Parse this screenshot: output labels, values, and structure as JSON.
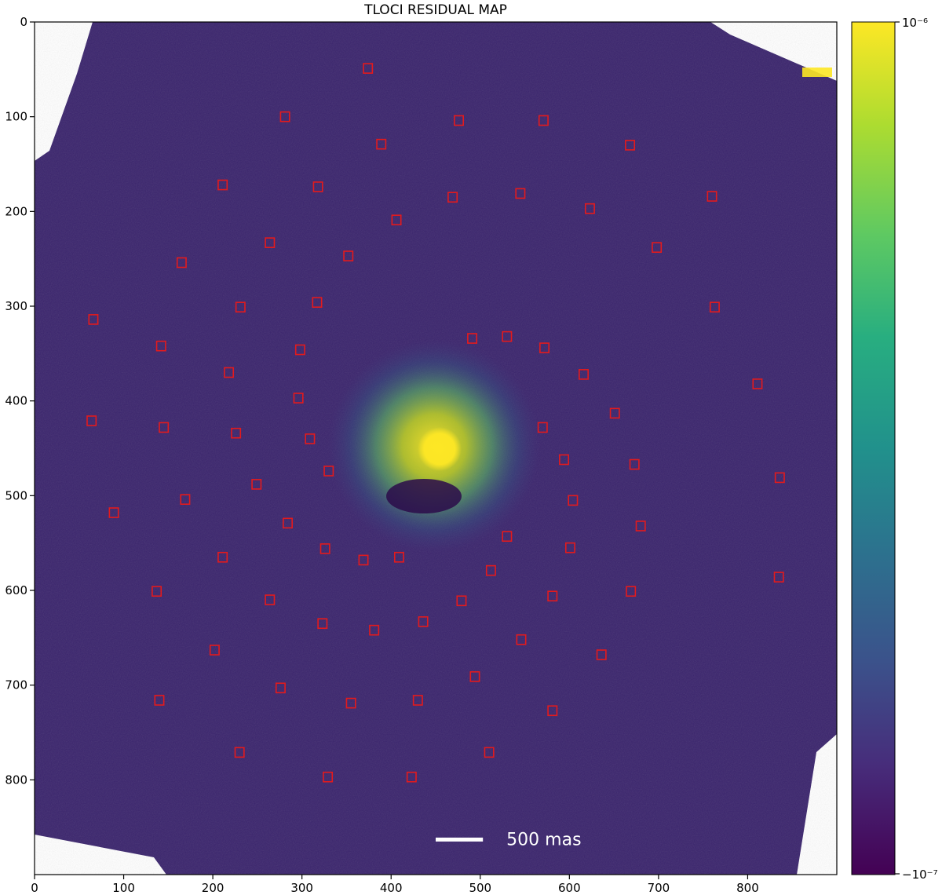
{
  "chart_data": {
    "type": "heatmap",
    "title": "TLOCI RESIDUAL MAP",
    "xlim": [
      0,
      900
    ],
    "ylim": [
      900,
      0
    ],
    "xticks": [
      0,
      100,
      200,
      300,
      400,
      500,
      600,
      700,
      800
    ],
    "yticks": [
      0,
      100,
      200,
      300,
      400,
      500,
      600,
      700,
      800
    ],
    "colorbar": {
      "colormap": "viridis",
      "max_label": "10⁻⁶",
      "min_label": "−10⁻⁷",
      "max_value": 1e-06,
      "min_value": -1e-07
    },
    "center": [
      460,
      455
    ],
    "scalebar": {
      "label": "500 mas",
      "x_start": 450,
      "x_end": 503,
      "y": 863,
      "color": "#ffffff"
    },
    "marker_style": {
      "shape": "square",
      "edge_color": "#e41a1c",
      "size_units": 10
    },
    "markers": [
      [
        374,
        49
      ],
      [
        281,
        100
      ],
      [
        476,
        104
      ],
      [
        571,
        104
      ],
      [
        668,
        130
      ],
      [
        389,
        129
      ],
      [
        211,
        172
      ],
      [
        318,
        174
      ],
      [
        469,
        185
      ],
      [
        545,
        181
      ],
      [
        623,
        197
      ],
      [
        760,
        184
      ],
      [
        406,
        209
      ],
      [
        264,
        233
      ],
      [
        352,
        247
      ],
      [
        165,
        254
      ],
      [
        698,
        238
      ],
      [
        231,
        301
      ],
      [
        317,
        296
      ],
      [
        763,
        301
      ],
      [
        66,
        314
      ],
      [
        142,
        342
      ],
      [
        298,
        346
      ],
      [
        491,
        334
      ],
      [
        530,
        332
      ],
      [
        572,
        344
      ],
      [
        616,
        372
      ],
      [
        218,
        370
      ],
      [
        296,
        397
      ],
      [
        811,
        382
      ],
      [
        651,
        413
      ],
      [
        64,
        421
      ],
      [
        145,
        428
      ],
      [
        226,
        434
      ],
      [
        309,
        440
      ],
      [
        570,
        428
      ],
      [
        594,
        462
      ],
      [
        673,
        467
      ],
      [
        330,
        474
      ],
      [
        836,
        481
      ],
      [
        249,
        488
      ],
      [
        169,
        504
      ],
      [
        604,
        505
      ],
      [
        89,
        518
      ],
      [
        284,
        529
      ],
      [
        680,
        532
      ],
      [
        530,
        543
      ],
      [
        601,
        555
      ],
      [
        326,
        556
      ],
      [
        369,
        568
      ],
      [
        409,
        565
      ],
      [
        211,
        565
      ],
      [
        512,
        579
      ],
      [
        137,
        601
      ],
      [
        669,
        601
      ],
      [
        264,
        610
      ],
      [
        479,
        611
      ],
      [
        581,
        606
      ],
      [
        835,
        586
      ],
      [
        323,
        635
      ],
      [
        381,
        642
      ],
      [
        436,
        633
      ],
      [
        546,
        652
      ],
      [
        636,
        668
      ],
      [
        202,
        663
      ],
      [
        494,
        691
      ],
      [
        276,
        703
      ],
      [
        140,
        716
      ],
      [
        355,
        719
      ],
      [
        430,
        716
      ],
      [
        581,
        727
      ],
      [
        230,
        771
      ],
      [
        510,
        771
      ],
      [
        329,
        797
      ],
      [
        423,
        797
      ]
    ]
  }
}
